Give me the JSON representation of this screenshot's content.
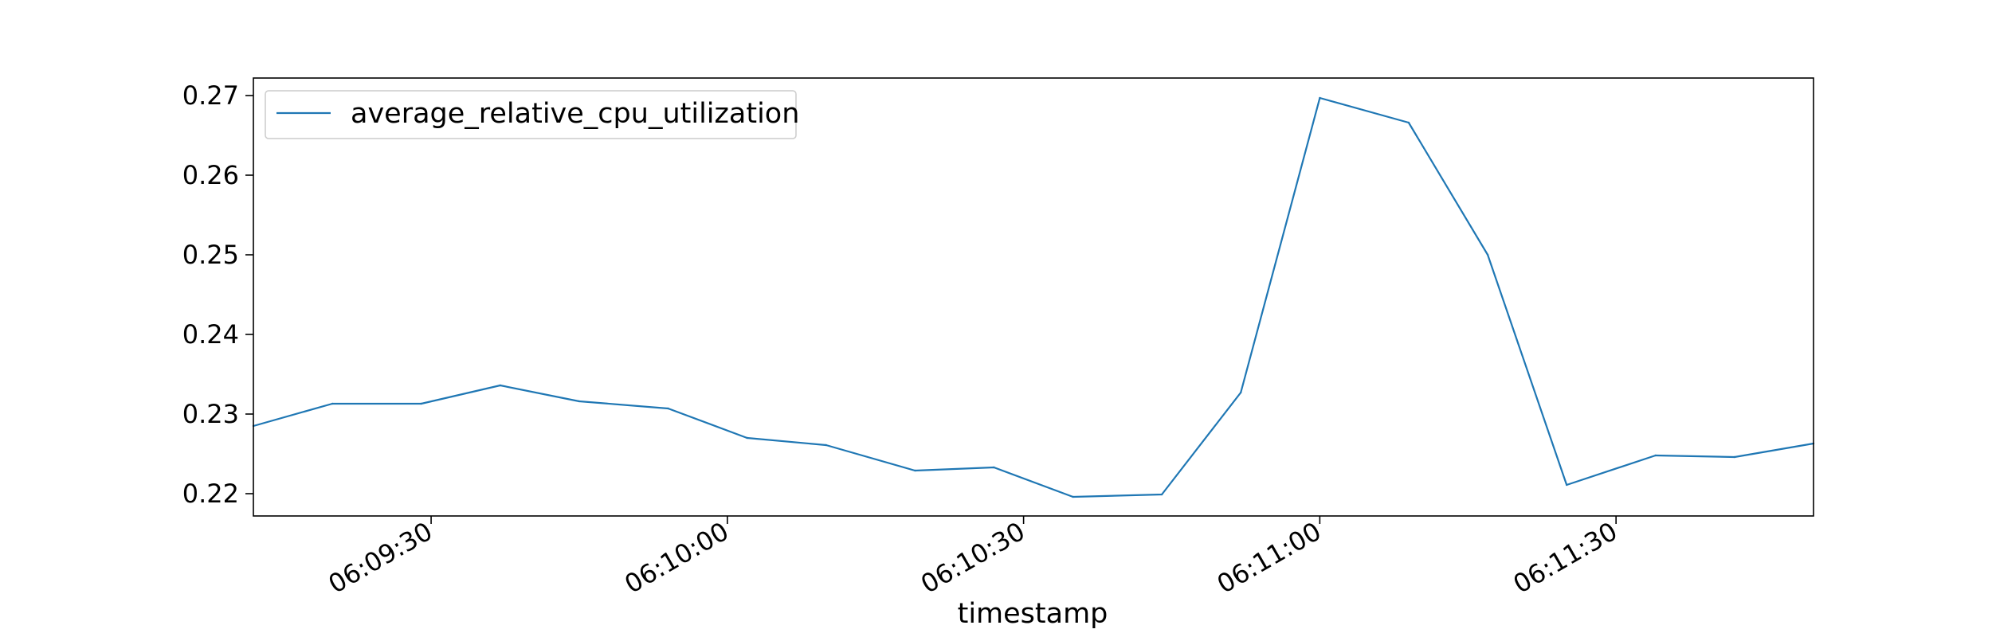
{
  "chart_data": {
    "type": "line",
    "xlabel": "timestamp",
    "ylabel": "",
    "title": "",
    "legend_position": "upper-left",
    "grid": false,
    "series_color": "#1f77b4",
    "x_tick_labels": [
      "06:09:30",
      "06:10:00",
      "06:10:30",
      "06:11:00",
      "06:11:30"
    ],
    "y_tick_labels": [
      "0.22",
      "0.23",
      "0.24",
      "0.25",
      "0.26",
      "0.27"
    ],
    "xlim": [
      "06:09:12",
      "06:11:50"
    ],
    "ylim": [
      0.2172,
      0.2722
    ],
    "series": [
      {
        "name": "average_relative_cpu_utilization",
        "x": [
          "06:09:12",
          "06:09:20",
          "06:09:29",
          "06:09:37",
          "06:09:45",
          "06:09:54",
          "06:10:02",
          "06:10:10",
          "06:10:19",
          "06:10:27",
          "06:10:35",
          "06:10:44",
          "06:10:52",
          "06:11:00",
          "06:11:09",
          "06:11:17",
          "06:11:25",
          "06:11:34",
          "06:11:42",
          "06:11:50"
        ],
        "values": [
          0.2285,
          0.2313,
          0.2313,
          0.2336,
          0.2316,
          0.2307,
          0.227,
          0.2261,
          0.2229,
          0.2233,
          0.2196,
          0.2199,
          0.2327,
          0.2697,
          0.2666,
          0.25,
          0.2211,
          0.2248,
          0.2246,
          0.2263
        ]
      }
    ]
  }
}
